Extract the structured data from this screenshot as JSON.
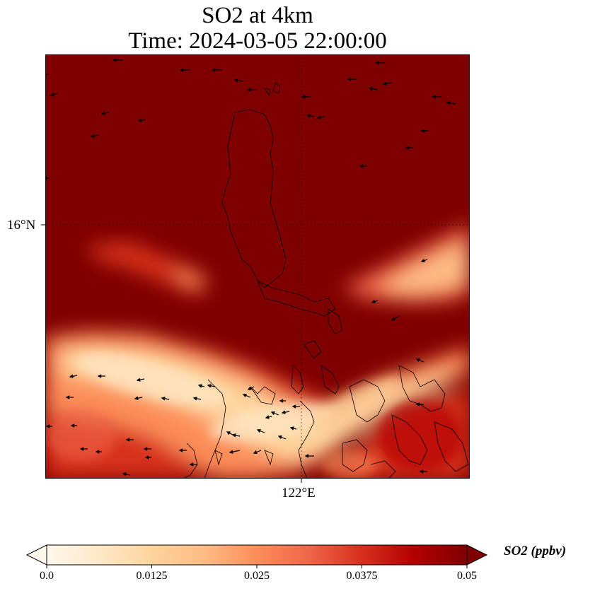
{
  "title": {
    "line1": "SO2 at 4km",
    "line2": "Time: 2024-03-05 22:00:00"
  },
  "axes": {
    "lat_tick_label": "16°N",
    "lon_tick_label": "122°E"
  },
  "colorbar": {
    "label": "SO2 (ppbv)",
    "min": 0.0,
    "max": 0.05,
    "ticks": [
      "0.0",
      "0.0125",
      "0.025",
      "0.0375",
      "0.05"
    ],
    "tick_values": [
      0.0,
      0.0125,
      0.025,
      0.0375,
      0.05
    ],
    "colormap": "OrRd",
    "colors": [
      "#fff7ec",
      "#fee8c8",
      "#fdd49e",
      "#fdbb84",
      "#fc8d59",
      "#ef6548",
      "#d7301f",
      "#b30000",
      "#7f0000"
    ],
    "extend": "both"
  },
  "map": {
    "background_value_color": "#7f0000",
    "gridlines": "dotted",
    "coastline_color": "#000000",
    "wind_arrows": true
  }
}
